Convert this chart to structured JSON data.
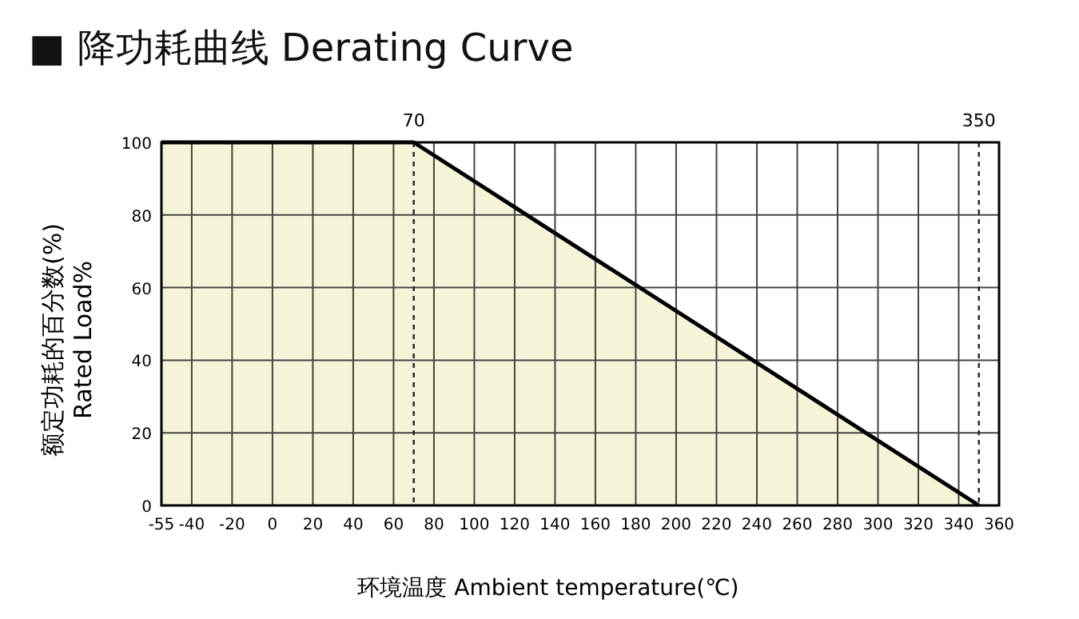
{
  "chart_data": {
    "type": "area",
    "title": "■ 降功耗曲线   Derating Curve",
    "xlabel": "环境温度  Ambient temperature(℃)",
    "ylabel": "额定功耗的百分数(%)\nRated Load%",
    "x": [
      -55,
      70,
      350
    ],
    "series": [
      {
        "color": "#f6f4d8",
        "values": [
          100,
          100,
          0
        ]
      }
    ],
    "xlim": [
      -55,
      360
    ],
    "xticks": [
      -55,
      -40,
      -20,
      0,
      20,
      40,
      60,
      80,
      100,
      120,
      140,
      160,
      180,
      200,
      220,
      240,
      260,
      280,
      300,
      320,
      340,
      360
    ],
    "ylim": [
      0,
      100
    ],
    "yticks": [
      0,
      20,
      40,
      60,
      80,
      100
    ],
    "grid": true,
    "ref_lines": [
      {
        "axis": "x",
        "value": 70,
        "label": "70",
        "line_style": "dashed"
      },
      {
        "axis": "x",
        "value": 350,
        "label": "350",
        "line_style": "dashed"
      }
    ]
  }
}
